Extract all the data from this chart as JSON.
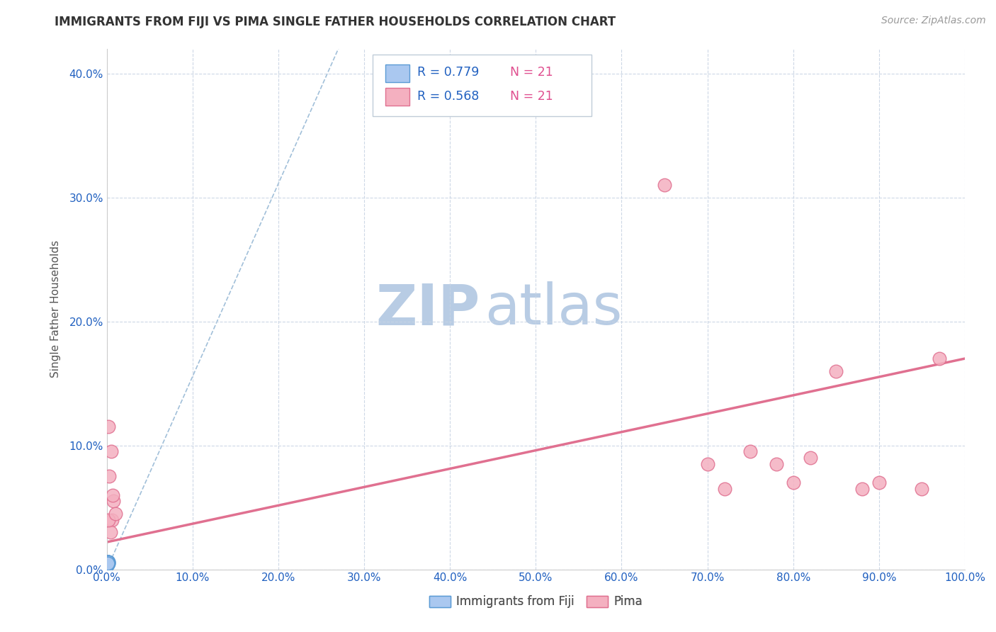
{
  "title": "IMMIGRANTS FROM FIJI VS PIMA SINGLE FATHER HOUSEHOLDS CORRELATION CHART",
  "source_text": "Source: ZipAtlas.com",
  "ylabel": "Single Father Households",
  "xlim": [
    0,
    1.0
  ],
  "ylim": [
    0,
    0.42
  ],
  "x_ticks": [
    0.0,
    0.1,
    0.2,
    0.3,
    0.4,
    0.5,
    0.6,
    0.7,
    0.8,
    0.9,
    1.0
  ],
  "y_ticks": [
    0.0,
    0.1,
    0.2,
    0.3,
    0.4
  ],
  "fiji_x": [
    0.0005,
    0.001,
    0.0015,
    0.0005,
    0.001,
    0.0008,
    0.0012,
    0.002,
    0.0006,
    0.001,
    0.0015,
    0.0008,
    0.001,
    0.0012,
    0.0006,
    0.0018,
    0.001,
    0.0005,
    0.0014,
    0.0009,
    0.0007
  ],
  "fiji_y": [
    0.005,
    0.006,
    0.005,
    0.004,
    0.006,
    0.005,
    0.005,
    0.006,
    0.005,
    0.004,
    0.006,
    0.005,
    0.005,
    0.006,
    0.004,
    0.005,
    0.005,
    0.003,
    0.006,
    0.005,
    0.005
  ],
  "pima_x": [
    0.002,
    0.005,
    0.008,
    0.003,
    0.006,
    0.004,
    0.007,
    0.002,
    0.01,
    0.7,
    0.75,
    0.8,
    0.85,
    0.9,
    0.95,
    0.97,
    0.72,
    0.78,
    0.82,
    0.88,
    0.65
  ],
  "pima_y": [
    0.115,
    0.095,
    0.055,
    0.075,
    0.04,
    0.03,
    0.06,
    0.04,
    0.045,
    0.085,
    0.095,
    0.07,
    0.16,
    0.07,
    0.065,
    0.17,
    0.065,
    0.085,
    0.09,
    0.065,
    0.31
  ],
  "fiji_color": "#aac8f0",
  "fiji_edge_color": "#5b9bd5",
  "pima_color": "#f4b0c0",
  "pima_edge_color": "#e07090",
  "fiji_R": "0.779",
  "pima_R": "0.568",
  "fiji_N": "21",
  "pima_N": "21",
  "R_color": "#2060c0",
  "N_color": "#e05090",
  "watermark_zip": "ZIP",
  "watermark_atlas": "atlas",
  "watermark_color_zip": "#b8cce4",
  "watermark_color_atlas": "#b8cce4",
  "title_color": "#333333",
  "axis_label_color": "#555555",
  "tick_label_color": "#2060c0",
  "grid_color": "#c8d4e4",
  "ref_line_color": "#8ab0d0",
  "pima_line_color": "#e07090",
  "background_color": "#ffffff",
  "pima_line_x0": 0.0,
  "pima_line_y0": 0.022,
  "pima_line_x1": 1.0,
  "pima_line_y1": 0.17
}
